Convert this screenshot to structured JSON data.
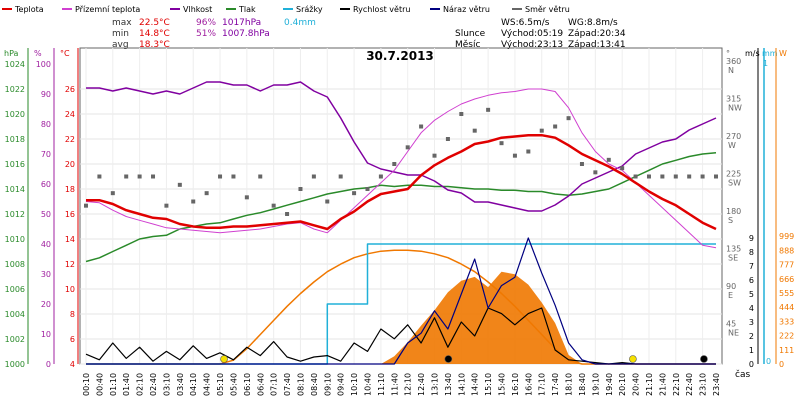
{
  "chart_data": {
    "type": "line",
    "title": "30.7.2013",
    "xlabel": "čas",
    "x": [
      "00:10",
      "00:40",
      "01:10",
      "01:40",
      "02:10",
      "02:40",
      "03:10",
      "03:40",
      "04:10",
      "04:40",
      "05:10",
      "05:40",
      "06:10",
      "06:40",
      "07:10",
      "07:40",
      "08:10",
      "08:40",
      "09:10",
      "09:40",
      "10:10",
      "10:40",
      "11:10",
      "11:40",
      "12:10",
      "12:40",
      "13:10",
      "13:40",
      "14:10",
      "14:40",
      "15:10",
      "15:40",
      "16:10",
      "16:40",
      "17:10",
      "17:40",
      "18:10",
      "18:40",
      "19:10",
      "19:40",
      "20:10",
      "20:40",
      "21:10",
      "21:40",
      "22:10",
      "22:40",
      "23:10",
      "23:40"
    ],
    "x_tick_labels": [
      "00:10",
      "00:40",
      "01:10",
      "01:40",
      "02:10",
      "02:40",
      "03:10",
      "03:40",
      "04:10",
      "04:40",
      "05:10",
      "05:40",
      "06:10",
      "06:40",
      "07:10",
      "07:40",
      "08:10",
      "08:40",
      "09:10",
      "09:40",
      "10:10",
      "10:40",
      "11:10",
      "11:40",
      "12:10",
      "12:40",
      "13:10",
      "13:40",
      "14:10",
      "14:40",
      "15:10",
      "15:40",
      "16:10",
      "16:40",
      "17:10",
      "17:40",
      "18:10",
      "18:40",
      "19:10",
      "19:40",
      "20:10",
      "20:40",
      "21:10",
      "21:40",
      "22:10",
      "22:40",
      "23:10",
      "23:40"
    ],
    "axes": {
      "pressure": {
        "label": "hPa",
        "min": 1000,
        "max": 1024,
        "ticks": [
          "1000",
          "1002",
          "1004",
          "1006",
          "1008",
          "1010",
          "1012",
          "1014",
          "1016",
          "1018",
          "1020",
          "1022",
          "1024"
        ],
        "color": "#2a8a2a"
      },
      "humidity": {
        "label": "%",
        "min": 0,
        "max": 100,
        "ticks": [
          "0",
          "10",
          "20",
          "30",
          "40",
          "50",
          "60",
          "70",
          "80",
          "90",
          "100"
        ],
        "color": "#a020a0"
      },
      "temperature": {
        "label": "°C",
        "min": 4,
        "max": 28,
        "ticks": [
          "4",
          "6",
          "8",
          "10",
          "12",
          "14",
          "16",
          "18",
          "20",
          "22",
          "24",
          "26"
        ],
        "color": "#e00000"
      },
      "wind_dir": {
        "label": "°",
        "min": 0,
        "max": 360,
        "ticks": [
          {
            "deg": "45",
            "dir": "NE"
          },
          {
            "deg": "90",
            "dir": "E"
          },
          {
            "deg": "135",
            "dir": "SE"
          },
          {
            "deg": "180",
            "dir": "S"
          },
          {
            "deg": "225",
            "dir": "SW"
          },
          {
            "deg": "270",
            "dir": "W"
          },
          {
            "deg": "315",
            "dir": "NW"
          },
          {
            "deg": "360",
            "dir": "N"
          }
        ],
        "color": "#666666"
      },
      "wind_speed": {
        "label": "m/s",
        "min": 0,
        "max": 9,
        "ticks": [
          "0",
          "1",
          "2",
          "3",
          "4",
          "5",
          "6",
          "7",
          "8",
          "9"
        ],
        "color": "#000000"
      },
      "rain": {
        "label": "mm",
        "min": 0,
        "max": 1,
        "ticks": [
          "0",
          "1"
        ],
        "color": "#20b0d8"
      },
      "solar": {
        "label": "W",
        "min": 0,
        "max": 999,
        "ticks": [
          "0",
          "111",
          "222",
          "333",
          "444",
          "555",
          "666",
          "777",
          "888",
          "999"
        ],
        "color": "#f07800"
      }
    },
    "legend": [
      {
        "name": "Teplota",
        "color": "#e00000"
      },
      {
        "name": "Přízemní teplota",
        "color": "#d040d0"
      },
      {
        "name": "Vlhkost",
        "color": "#8000a0"
      },
      {
        "name": "Tlak",
        "color": "#2a8a2a"
      },
      {
        "name": "Srážky",
        "color": "#20b0d8"
      },
      {
        "name": "Rychlost větru",
        "color": "#000000"
      },
      {
        "name": "Náraz větru",
        "color": "#000080"
      },
      {
        "name": "Směr větru",
        "color": "#666666"
      }
    ],
    "stats": {
      "max_label": "max",
      "min_label": "min",
      "avg_label": "avg",
      "max_temp": "22.5°C",
      "max_hum": "96%",
      "max_press": "1017hPa",
      "max_rain": "0.4mm",
      "min_temp": "14.8°C",
      "min_hum": "51%",
      "min_press": "1007.8hPa",
      "avg_temp": "18.3°C",
      "ws": "WS:6.5m/s",
      "wg": "WG:8.8m/s",
      "sun_label": "Slunce",
      "sunrise": "Východ:05:19",
      "sunset": "Západ:20:34",
      "moon_label": "Měsíc",
      "moonrise": "Východ:23:13",
      "moonset": "Západ:13:41"
    },
    "series": [
      {
        "name": "Teplota",
        "axis": "temperature",
        "color": "#e00000",
        "values": [
          17.1,
          17.1,
          16.8,
          16.3,
          16.0,
          15.7,
          15.6,
          15.2,
          15.0,
          14.9,
          14.9,
          15.0,
          15.0,
          15.1,
          15.2,
          15.3,
          15.4,
          15.1,
          14.8,
          15.6,
          16.2,
          17.0,
          17.6,
          17.8,
          18.0,
          19.1,
          19.9,
          20.5,
          21.0,
          21.6,
          21.8,
          22.1,
          22.2,
          22.3,
          22.3,
          22.1,
          21.5,
          20.8,
          20.3,
          19.8,
          19.2,
          18.5,
          17.8,
          17.2,
          16.7,
          16.0,
          15.3,
          14.8
        ]
      },
      {
        "name": "Přízemní teplota",
        "axis": "temperature",
        "color": "#d040d0",
        "values": [
          17.0,
          16.9,
          16.3,
          15.8,
          15.5,
          15.2,
          14.9,
          14.8,
          14.7,
          14.6,
          14.5,
          14.6,
          14.7,
          14.8,
          15.0,
          15.2,
          15.3,
          14.8,
          14.5,
          15.5,
          16.5,
          17.5,
          18.5,
          19.5,
          21.0,
          22.5,
          23.5,
          24.2,
          24.8,
          25.2,
          25.5,
          25.7,
          25.8,
          26.0,
          26.0,
          25.8,
          24.5,
          22.5,
          21.0,
          20.0,
          19.5,
          18.5,
          17.5,
          16.5,
          15.5,
          14.5,
          13.5,
          13.3
        ]
      },
      {
        "name": "Vlhkost",
        "axis": "humidity",
        "color": "#8000a0",
        "values": [
          92,
          92,
          91,
          92,
          91,
          90,
          91,
          90,
          92,
          94,
          94,
          93,
          93,
          91,
          93,
          93,
          94,
          91,
          89,
          82,
          74,
          67,
          65,
          64,
          63,
          63,
          61,
          58,
          57,
          54,
          54,
          53,
          52,
          51,
          51,
          53,
          56,
          60,
          62,
          64,
          66,
          70,
          72,
          74,
          75,
          78,
          80,
          82
        ]
      },
      {
        "name": "Tlak",
        "axis": "pressure",
        "color": "#2a8a2a",
        "values": [
          1008.2,
          1008.5,
          1009.0,
          1009.5,
          1010.0,
          1010.2,
          1010.3,
          1010.8,
          1011.0,
          1011.2,
          1011.3,
          1011.6,
          1011.9,
          1012.1,
          1012.4,
          1012.7,
          1013.0,
          1013.3,
          1013.6,
          1013.8,
          1014.0,
          1014.1,
          1014.3,
          1014.2,
          1014.3,
          1014.3,
          1014.2,
          1014.2,
          1014.1,
          1014.0,
          1014.0,
          1013.9,
          1013.9,
          1013.8,
          1013.8,
          1013.6,
          1013.5,
          1013.6,
          1013.8,
          1014.0,
          1014.5,
          1015.0,
          1015.5,
          1016.0,
          1016.3,
          1016.6,
          1016.8,
          1016.9
        ]
      },
      {
        "name": "Srážky",
        "axis": "rain",
        "color": "#20b0d8",
        "values": [
          0,
          0,
          0,
          0,
          0,
          0,
          0,
          0,
          0,
          0,
          0,
          0,
          0,
          0,
          0,
          0,
          0,
          0,
          0.2,
          0.2,
          0.2,
          0.4,
          0.4,
          0.4,
          0.4,
          0.4,
          0.4,
          0.4,
          0.4,
          0.4,
          0.4,
          0.4,
          0.4,
          0.4,
          0.4,
          0.4,
          0.4,
          0.4,
          0.4,
          0.4,
          0.4,
          0.4,
          0.4,
          0.4,
          0.4,
          0.4,
          0.4,
          0.4
        ]
      },
      {
        "name": "Rychlost větru",
        "axis": "wind_speed",
        "color": "#000000",
        "values": [
          0.7,
          0.3,
          1.5,
          0.4,
          1.2,
          0.2,
          0.9,
          0.3,
          1.3,
          0.4,
          0.8,
          0.3,
          1.2,
          0.6,
          1.6,
          0.5,
          0.2,
          0.5,
          0.6,
          0.2,
          1.5,
          0.9,
          2.5,
          1.8,
          2.8,
          1.5,
          3.3,
          1.2,
          3.0,
          2.0,
          4.0,
          3.6,
          2.8,
          3.6,
          4.0,
          1.0,
          0.3,
          0.2,
          0.1,
          0.0,
          0.1,
          0.0,
          0.0,
          0.0,
          0.0,
          0.0,
          0.0,
          0.0
        ]
      },
      {
        "name": "Náraz větru",
        "axis": "wind_speed",
        "color": "#000080",
        "values": [
          0,
          0,
          0,
          0,
          0,
          0,
          0,
          0,
          0,
          0,
          0,
          0,
          0,
          0,
          0,
          0,
          0,
          0,
          0,
          0,
          0,
          0,
          0,
          0,
          1.5,
          2.2,
          3.8,
          2.5,
          5.0,
          7.5,
          4.0,
          5.6,
          6.2,
          9.0,
          6.5,
          4.2,
          1.5,
          0.3,
          0,
          0,
          0,
          0,
          0,
          0,
          0,
          0,
          0,
          0
        ]
      },
      {
        "name": "Směr větru",
        "axis": "wind_dir",
        "color": "#666666",
        "values": [
          190,
          225,
          205,
          225,
          225,
          225,
          190,
          215,
          195,
          205,
          225,
          225,
          200,
          225,
          190,
          180,
          210,
          225,
          195,
          225,
          205,
          210,
          225,
          240,
          260,
          285,
          250,
          270,
          300,
          280,
          305,
          265,
          250,
          255,
          280,
          285,
          295,
          240,
          230,
          245,
          235,
          225,
          225,
          225,
          225,
          225,
          225,
          225
        ]
      },
      {
        "name": "Solar",
        "axis": "solar",
        "color": "#f07800",
        "values": [
          0,
          0,
          0,
          0,
          0,
          0,
          0,
          0,
          0,
          0,
          0,
          30,
          120,
          230,
          340,
          450,
          550,
          640,
          720,
          780,
          830,
          860,
          880,
          888,
          888,
          880,
          860,
          830,
          780,
          720,
          640,
          550,
          450,
          340,
          230,
          120,
          30,
          0,
          0,
          0,
          0,
          0,
          0,
          0,
          0,
          0,
          0,
          0
        ]
      },
      {
        "name": "Solar area",
        "axis": "solar",
        "color": "#f07800",
        "values": [
          0,
          0,
          0,
          0,
          0,
          0,
          0,
          0,
          0,
          0,
          0,
          0,
          0,
          0,
          0,
          0,
          0,
          0,
          0,
          0,
          0,
          0,
          0,
          60,
          170,
          300,
          420,
          560,
          650,
          680,
          600,
          720,
          700,
          620,
          480,
          320,
          70,
          0,
          0,
          0,
          0,
          0,
          0,
          0,
          0,
          0,
          0,
          0
        ]
      }
    ],
    "markers": [
      {
        "name": "sunrise-marker",
        "x": "05:19",
        "color": "#f5e000"
      },
      {
        "name": "sunset-marker",
        "x": "20:34",
        "color": "#f5e000"
      },
      {
        "name": "moonset-marker",
        "x": "13:41",
        "color": "#000000"
      },
      {
        "name": "moonrise-marker",
        "x": "23:13",
        "color": "#000000"
      }
    ],
    "grid": true
  }
}
